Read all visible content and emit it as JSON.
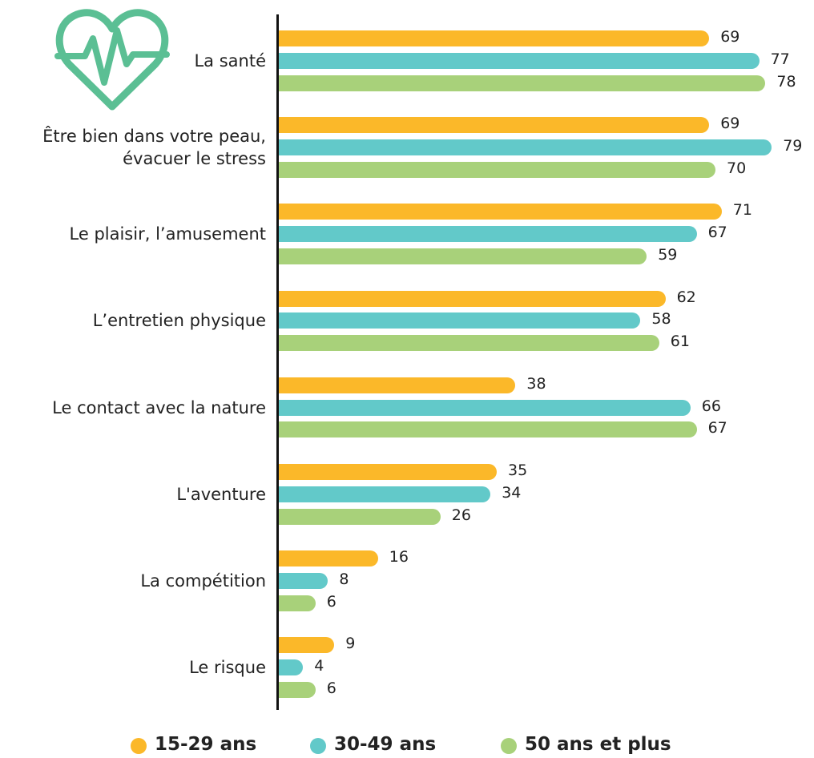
{
  "chart_data": {
    "type": "bar",
    "orientation": "horizontal",
    "categories": [
      "La santé",
      "Être bien dans votre peau,\névacuer le stress",
      "Le plaisir, l’amusement",
      "L’entretien physique",
      "Le contact avec la nature",
      "L'aventure",
      "La compétition",
      "Le risque"
    ],
    "series": [
      {
        "name": "15-29 ans",
        "color": "#fbb829",
        "values": [
          69,
          69,
          71,
          62,
          38,
          35,
          16,
          9
        ]
      },
      {
        "name": "30-49 ans",
        "color": "#62c9c9",
        "values": [
          77,
          79,
          67,
          58,
          66,
          34,
          8,
          4
        ]
      },
      {
        "name": "50 ans et plus",
        "color": "#a8d17a",
        "values": [
          78,
          70,
          59,
          61,
          67,
          26,
          6,
          6
        ]
      }
    ],
    "legend": "bottom"
  }
}
